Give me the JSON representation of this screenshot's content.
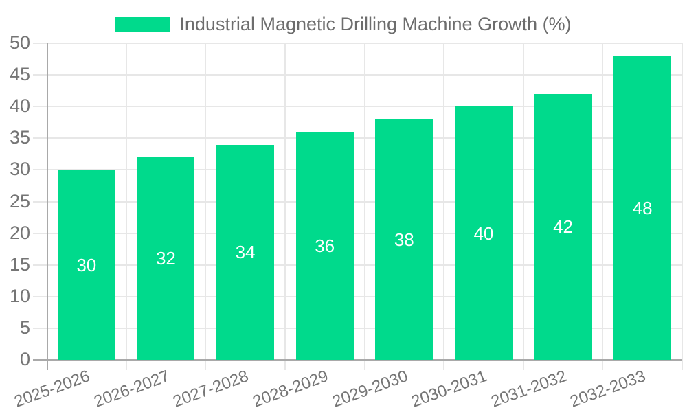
{
  "chart_data": {
    "type": "bar",
    "title": "Industrial Magnetic Drilling Machine Growth (%)",
    "categories": [
      "2025-2026",
      "2026-2027",
      "2027-2028",
      "2028-2029",
      "2029-2030",
      "2030-2031",
      "2031-2032",
      "2032-2033"
    ],
    "series": [
      {
        "name": "Industrial Magnetic Drilling Machine Growth (%)",
        "values": [
          30,
          32,
          34,
          36,
          38,
          40,
          42,
          48
        ]
      }
    ],
    "xlabel": "",
    "ylabel": "",
    "ylim": [
      0,
      50
    ],
    "ytick_step": 5,
    "y_ticks": [
      0,
      5,
      10,
      15,
      20,
      25,
      30,
      35,
      40,
      45,
      50
    ],
    "grid": true,
    "legend_position": "top",
    "value_labels": "centered-inside-bars",
    "colors": {
      "bar": "#00da8c",
      "value_label": "#ffffff",
      "axis_line": "#a9a9a9",
      "gridline": "#e7e7e7",
      "tick_text": "#757575",
      "legend_text": "#6d6d6d"
    }
  }
}
